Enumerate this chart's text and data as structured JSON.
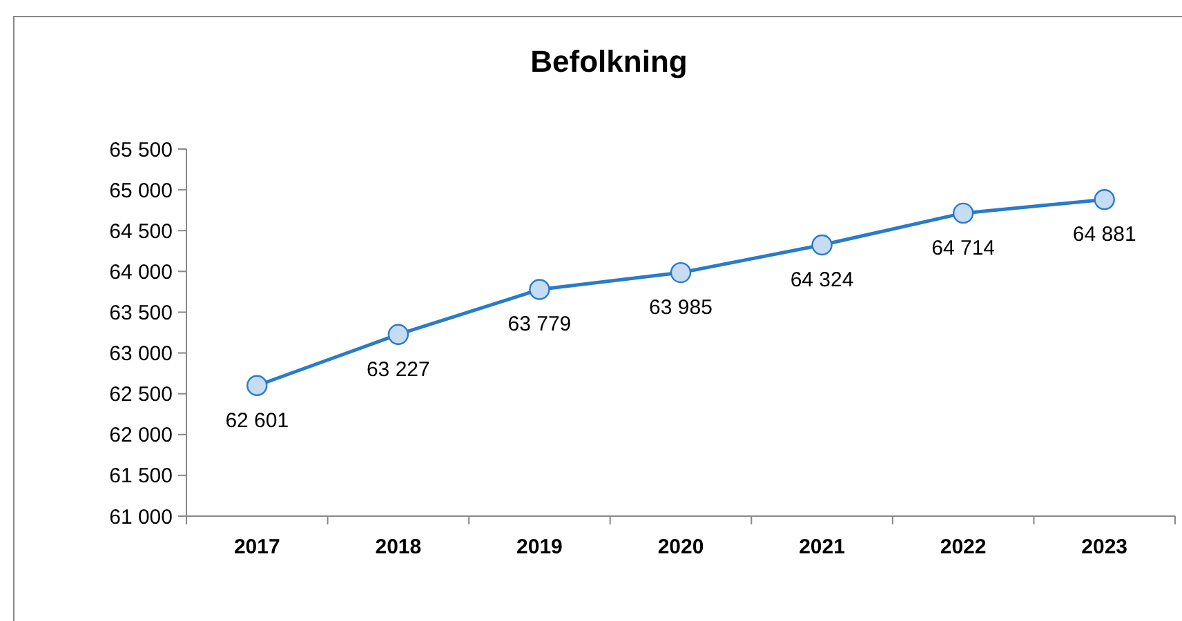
{
  "chart_data": {
    "type": "line",
    "title": "Befolkning",
    "categories": [
      "2017",
      "2018",
      "2019",
      "2020",
      "2021",
      "2022",
      "2023"
    ],
    "series": [
      {
        "color": "#2a7bc8",
        "values": [
          62601,
          63227,
          63779,
          63985,
          64324,
          64714,
          64881
        ]
      }
    ],
    "value_labels": [
      "62 601",
      "63 227",
      "63 779",
      "63 985",
      "64 324",
      "64 714",
      "64 881"
    ],
    "ylim": [
      61000,
      65500
    ],
    "yticks": [
      {
        "value": 61000,
        "label": "61 000"
      },
      {
        "value": 61500,
        "label": "61 500"
      },
      {
        "value": 62000,
        "label": "62 000"
      },
      {
        "value": 62500,
        "label": "62 500"
      },
      {
        "value": 63000,
        "label": "63 000"
      },
      {
        "value": 63500,
        "label": "63 500"
      },
      {
        "value": 64000,
        "label": "64 000"
      },
      {
        "value": 64500,
        "label": "64 500"
      },
      {
        "value": 65000,
        "label": "65 000"
      },
      {
        "value": 65500,
        "label": "65 500"
      }
    ],
    "grid": false,
    "marker": "circle",
    "line_style": "solid"
  }
}
